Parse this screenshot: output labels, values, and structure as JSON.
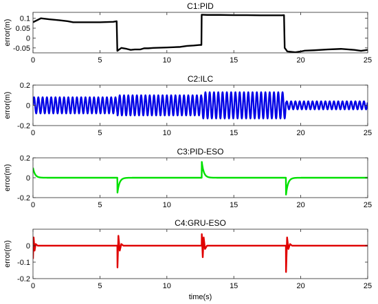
{
  "chart_data": [
    {
      "type": "line",
      "title": "C1:PID",
      "ylabel": "error(m)",
      "xlabel": "",
      "xlim": [
        0,
        25
      ],
      "ylim": [
        -0.075,
        0.13
      ],
      "xticks": [
        "0",
        "5",
        "10",
        "15",
        "20",
        "25"
      ],
      "xtick_values": [
        0,
        5,
        10,
        15,
        20,
        25
      ],
      "yticks": [
        "-0.05",
        "0",
        "0.05",
        "0.1"
      ],
      "ytick_values": [
        -0.05,
        0,
        0.05,
        0.1
      ],
      "grid": false,
      "series": [
        {
          "color": "#000000",
          "x": [
            0,
            0.3,
            0.6,
            1.2,
            2.0,
            2.6,
            3.0,
            4.0,
            5.0,
            6.0,
            6.25,
            6.3,
            6.6,
            7.0,
            7.3,
            7.6,
            8.0,
            8.3,
            8.6,
            9.0,
            10.0,
            11.0,
            11.5,
            12.0,
            12.5,
            12.58,
            12.6,
            13.0,
            14.0,
            15.0,
            16.0,
            17.0,
            18.0,
            18.6,
            18.75,
            18.8,
            19.0,
            19.3,
            19.6,
            20.0,
            20.3,
            21.0,
            22.0,
            23.0,
            24.0,
            24.5,
            25.0
          ],
          "values": [
            0.08,
            0.09,
            0.1,
            0.095,
            0.09,
            0.085,
            0.08,
            0.08,
            0.08,
            0.082,
            0.085,
            -0.065,
            -0.05,
            -0.055,
            -0.06,
            -0.058,
            -0.058,
            -0.052,
            -0.052,
            -0.05,
            -0.048,
            -0.045,
            -0.04,
            -0.038,
            -0.035,
            -0.035,
            0.118,
            0.117,
            0.117,
            0.116,
            0.116,
            0.115,
            0.115,
            0.115,
            0.116,
            -0.05,
            -0.068,
            -0.07,
            -0.072,
            -0.068,
            -0.064,
            -0.062,
            -0.058,
            -0.055,
            -0.06,
            -0.065,
            -0.06
          ]
        }
      ]
    },
    {
      "type": "line",
      "title": "C2:ILC",
      "ylabel": "error(m)",
      "xlabel": "",
      "xlim": [
        0,
        25
      ],
      "ylim": [
        -0.2,
        0.2
      ],
      "xticks": [
        "0",
        "5",
        "10",
        "15",
        "20",
        "25"
      ],
      "xtick_values": [
        0,
        5,
        10,
        15,
        20,
        25
      ],
      "yticks": [
        "-0.2",
        "0",
        "0.2"
      ],
      "ytick_values": [
        -0.2,
        0,
        0.2
      ],
      "grid": false,
      "series": [
        {
          "color": "#0000e6",
          "oscillation": {
            "period": 0.32,
            "segments": [
              {
                "start": 0,
                "end": 6.3,
                "amplitude": 0.08
              },
              {
                "start": 6.3,
                "end": 12.6,
                "amplitude": 0.1
              },
              {
                "start": 12.6,
                "end": 18.9,
                "amplitude": 0.13
              },
              {
                "start": 18.9,
                "end": 25,
                "amplitude": 0.04
              }
            ]
          }
        }
      ]
    },
    {
      "type": "line",
      "title": "C3:PID-ESO",
      "ylabel": "error(m)",
      "xlabel": "",
      "xlim": [
        0,
        25
      ],
      "ylim": [
        -0.2,
        0.2
      ],
      "xticks": [
        "0",
        "5",
        "10",
        "15",
        "20",
        "25"
      ],
      "xtick_values": [
        0,
        5,
        10,
        15,
        20,
        25
      ],
      "yticks": [
        "-0.2",
        "0",
        "0.2"
      ],
      "ytick_values": [
        -0.2,
        0,
        0.2
      ],
      "grid": false,
      "series": [
        {
          "color": "#00e000",
          "baseline": 0,
          "spikes": [
            {
              "t": 0,
              "peak": 0.1,
              "decay": 0.15
            },
            {
              "t": 6.3,
              "peak": -0.16,
              "decay": 0.15
            },
            {
              "t": 12.6,
              "peak": 0.17,
              "decay": 0.15
            },
            {
              "t": 18.9,
              "peak": -0.17,
              "decay": 0.15
            }
          ]
        }
      ]
    },
    {
      "type": "line",
      "title": "C4:GRU-ESO",
      "ylabel": "error(m)",
      "xlabel": "time(s)",
      "xlim": [
        0,
        25
      ],
      "ylim": [
        -0.2,
        0.1
      ],
      "xticks": [
        "0",
        "5",
        "10",
        "15",
        "20",
        "25"
      ],
      "xtick_values": [
        0,
        5,
        10,
        15,
        20,
        25
      ],
      "yticks": [
        "-0.2",
        "-0.1",
        "0"
      ],
      "ytick_values": [
        -0.2,
        -0.1,
        0
      ],
      "grid": false,
      "series": [
        {
          "color": "#e00000",
          "baseline": 0,
          "spikes": [
            {
              "t": 0,
              "profile": [
                [
                  0,
                  -0.08
                ],
                [
                  0.05,
                  0.05
                ],
                [
                  0.12,
                  -0.03
                ],
                [
                  0.2,
                  0.01
                ],
                [
                  0.35,
                  0
                ]
              ]
            },
            {
              "t": 6.3,
              "profile": [
                [
                  0,
                  -0.16
                ],
                [
                  0.08,
                  0.06
                ],
                [
                  0.18,
                  -0.03
                ],
                [
                  0.3,
                  0.01
                ],
                [
                  0.45,
                  0
                ]
              ]
            },
            {
              "t": 12.6,
              "profile": [
                [
                  0,
                  0.09
                ],
                [
                  0.08,
                  -0.07
                ],
                [
                  0.15,
                  0.05
                ],
                [
                  0.25,
                  -0.02
                ],
                [
                  0.4,
                  0
                ]
              ]
            },
            {
              "t": 18.9,
              "profile": [
                [
                  0,
                  -0.16
                ],
                [
                  0.08,
                  0.05
                ],
                [
                  0.18,
                  -0.02
                ],
                [
                  0.3,
                  0.01
                ],
                [
                  0.45,
                  0
                ]
              ]
            }
          ]
        }
      ]
    }
  ]
}
